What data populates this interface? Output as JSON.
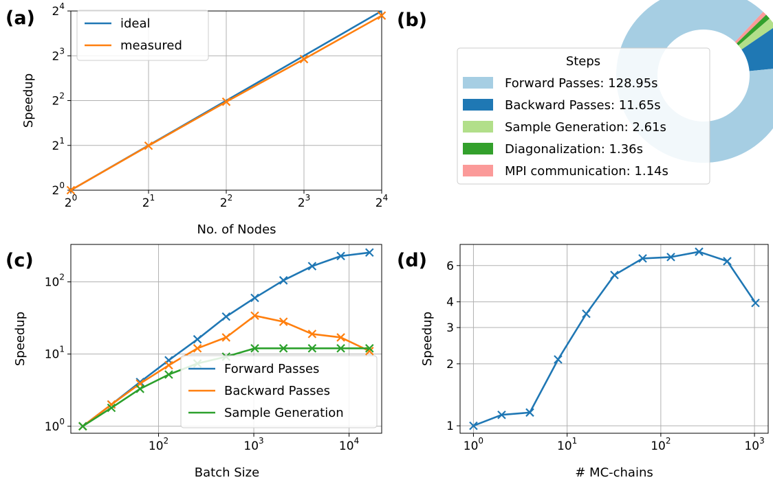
{
  "colors": {
    "blue": "#1f77b4",
    "orange": "#ff7f0e",
    "green": "#2ca02c"
  },
  "panels": {
    "a": "(a)",
    "b": "(b)",
    "c": "(c)",
    "d": "(d)"
  },
  "chart_data": [
    {
      "id": "a",
      "type": "line",
      "xlabel": "No. of Nodes",
      "ylabel": "Speedup",
      "xscale": "log2",
      "yscale": "log2",
      "xlim": [
        1,
        16
      ],
      "ylim": [
        1,
        16
      ],
      "xticks": [
        1,
        2,
        4,
        8,
        16
      ],
      "yticks": [
        1,
        2,
        4,
        8,
        16
      ],
      "xtick_labels": [
        {
          "base": "2",
          "exp": "0"
        },
        {
          "base": "2",
          "exp": "1"
        },
        {
          "base": "2",
          "exp": "2"
        },
        {
          "base": "2",
          "exp": "3"
        },
        {
          "base": "2",
          "exp": "4"
        }
      ],
      "ytick_labels": [
        {
          "base": "2",
          "exp": "0"
        },
        {
          "base": "2",
          "exp": "1"
        },
        {
          "base": "2",
          "exp": "2"
        },
        {
          "base": "2",
          "exp": "3"
        },
        {
          "base": "2",
          "exp": "4"
        }
      ],
      "grid": true,
      "legend_position": "top-left",
      "series": [
        {
          "name": "ideal",
          "color": "#1f77b4",
          "x": [
            1,
            2,
            4,
            8,
            16
          ],
          "y": [
            1,
            2,
            4,
            8,
            16
          ],
          "marker": "none"
        },
        {
          "name": "measured",
          "color": "#ff7f0e",
          "x": [
            1,
            2,
            4,
            8,
            16
          ],
          "y": [
            1,
            1.99,
            3.93,
            7.6,
            14.9
          ],
          "marker": "x"
        }
      ]
    },
    {
      "id": "b",
      "type": "pie",
      "style": "donut",
      "legend_title": "Steps",
      "legend_position": "left",
      "slices": [
        {
          "label": "Forward Passes: 128.95s",
          "value": 128.95,
          "color": "#a6cee3"
        },
        {
          "label": "Backward Passes: 11.65s",
          "value": 11.65,
          "color": "#1f78b4"
        },
        {
          "label": "Sample Generation: 2.61s",
          "value": 2.61,
          "color": "#b2df8a"
        },
        {
          "label": "Diagonalization: 1.36s",
          "value": 1.36,
          "color": "#33a02c"
        },
        {
          "label": "MPI communication: 1.14s",
          "value": 1.14,
          "color": "#fb9a99"
        }
      ]
    },
    {
      "id": "c",
      "type": "line",
      "xlabel": "Batch Size",
      "ylabel": "Speedup",
      "xscale": "log10",
      "yscale": "log10",
      "xlim": [
        12,
        22000
      ],
      "ylim": [
        0.8,
        330
      ],
      "xticks": [
        100,
        1000,
        10000
      ],
      "yticks": [
        1,
        10,
        100
      ],
      "xtick_labels": [
        {
          "base": "10",
          "exp": "2"
        },
        {
          "base": "10",
          "exp": "3"
        },
        {
          "base": "10",
          "exp": "4"
        }
      ],
      "ytick_labels": [
        {
          "base": "10",
          "exp": "0"
        },
        {
          "base": "10",
          "exp": "1"
        },
        {
          "base": "10",
          "exp": "2"
        }
      ],
      "grid": true,
      "legend_position": "lower-center",
      "series": [
        {
          "name": "Forward Passes",
          "color": "#1f77b4",
          "x": [
            16,
            32,
            64,
            128,
            256,
            512,
            1024,
            2048,
            4096,
            8192,
            16384
          ],
          "y": [
            1,
            2.0,
            4.1,
            8.2,
            16,
            33,
            60,
            105,
            165,
            228,
            255
          ],
          "marker": "x"
        },
        {
          "name": "Backward Passes",
          "color": "#ff7f0e",
          "x": [
            16,
            32,
            64,
            128,
            256,
            512,
            1024,
            2048,
            4096,
            8192,
            16384
          ],
          "y": [
            1,
            2.0,
            3.9,
            7.0,
            12,
            17,
            34,
            28,
            19,
            17,
            11
          ],
          "marker": "x"
        },
        {
          "name": "Sample Generation",
          "color": "#2ca02c",
          "x": [
            16,
            32,
            64,
            128,
            256,
            512,
            1024,
            2048,
            4096,
            8192,
            16384
          ],
          "y": [
            1,
            1.8,
            3.3,
            5.2,
            7.4,
            9.2,
            12,
            12,
            12,
            12,
            12
          ],
          "marker": "x"
        }
      ]
    },
    {
      "id": "d",
      "type": "line",
      "xlabel": "# MC-chains",
      "ylabel": "Speedup",
      "xscale": "log10",
      "yscale": "log",
      "xlim": [
        0.72,
        1400
      ],
      "ylim": [
        0.92,
        7.6
      ],
      "xticks": [
        1,
        10,
        100,
        1000
      ],
      "yticks": [
        1,
        2,
        3,
        4,
        6
      ],
      "xtick_labels": [
        {
          "base": "10",
          "exp": "0"
        },
        {
          "base": "10",
          "exp": "1"
        },
        {
          "base": "10",
          "exp": "2"
        },
        {
          "base": "10",
          "exp": "3"
        }
      ],
      "ytick_labels": [
        {
          "base": "1",
          "exp": ""
        },
        {
          "base": "2",
          "exp": ""
        },
        {
          "base": "3",
          "exp": ""
        },
        {
          "base": "4",
          "exp": ""
        },
        {
          "base": "6",
          "exp": ""
        }
      ],
      "grid": true,
      "series": [
        {
          "name": "",
          "color": "#1f77b4",
          "x": [
            1,
            2,
            4,
            8,
            16,
            32,
            64,
            128,
            256,
            512,
            1024
          ],
          "y": [
            1,
            1.13,
            1.16,
            2.1,
            3.5,
            5.4,
            6.5,
            6.6,
            7.0,
            6.3,
            3.95
          ],
          "marker": "x"
        }
      ]
    }
  ]
}
